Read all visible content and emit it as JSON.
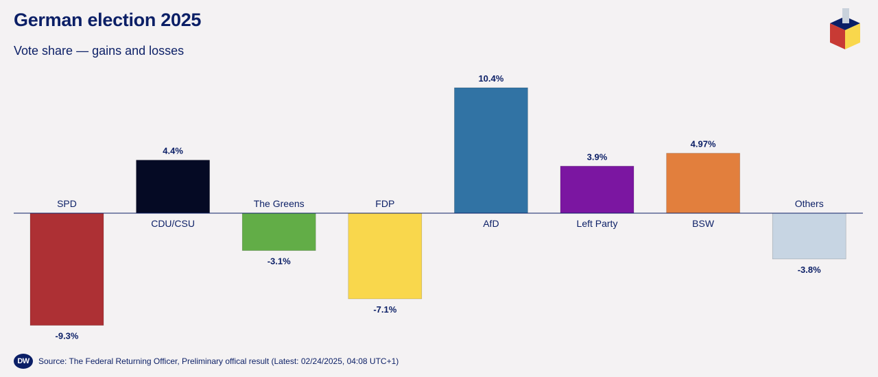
{
  "header": {
    "title": "German election 2025",
    "subtitle": "Vote share — gains and losses"
  },
  "footer": {
    "logo_text": "DW",
    "source": "Source: The Federal Returning Officer, Preliminary offical result (Latest: 02/24/2025, 04:08 UTC+1)"
  },
  "chart_data": {
    "type": "bar",
    "title": "German election 2025",
    "subtitle": "Vote share — gains and losses",
    "categories": [
      "SPD",
      "CDU/CSU",
      "The Greens",
      "FDP",
      "AfD",
      "Left Party",
      "BSW",
      "Others"
    ],
    "values": [
      -9.3,
      4.4,
      -3.1,
      -7.1,
      10.4,
      3.9,
      4.97,
      -3.8
    ],
    "value_labels": [
      "-9.3%",
      "4.4%",
      "-3.1%",
      "-7.1%",
      "10.4%",
      "3.9%",
      "4.97%",
      "-3.8%"
    ],
    "colors": [
      "#ad3034",
      "#050a24",
      "#62ad47",
      "#f9d74c",
      "#3173a4",
      "#7b16a1",
      "#e27f3d",
      "#c7d5e3"
    ],
    "ylim": [
      -9.3,
      10.4
    ],
    "grid": false,
    "legend": "none"
  }
}
